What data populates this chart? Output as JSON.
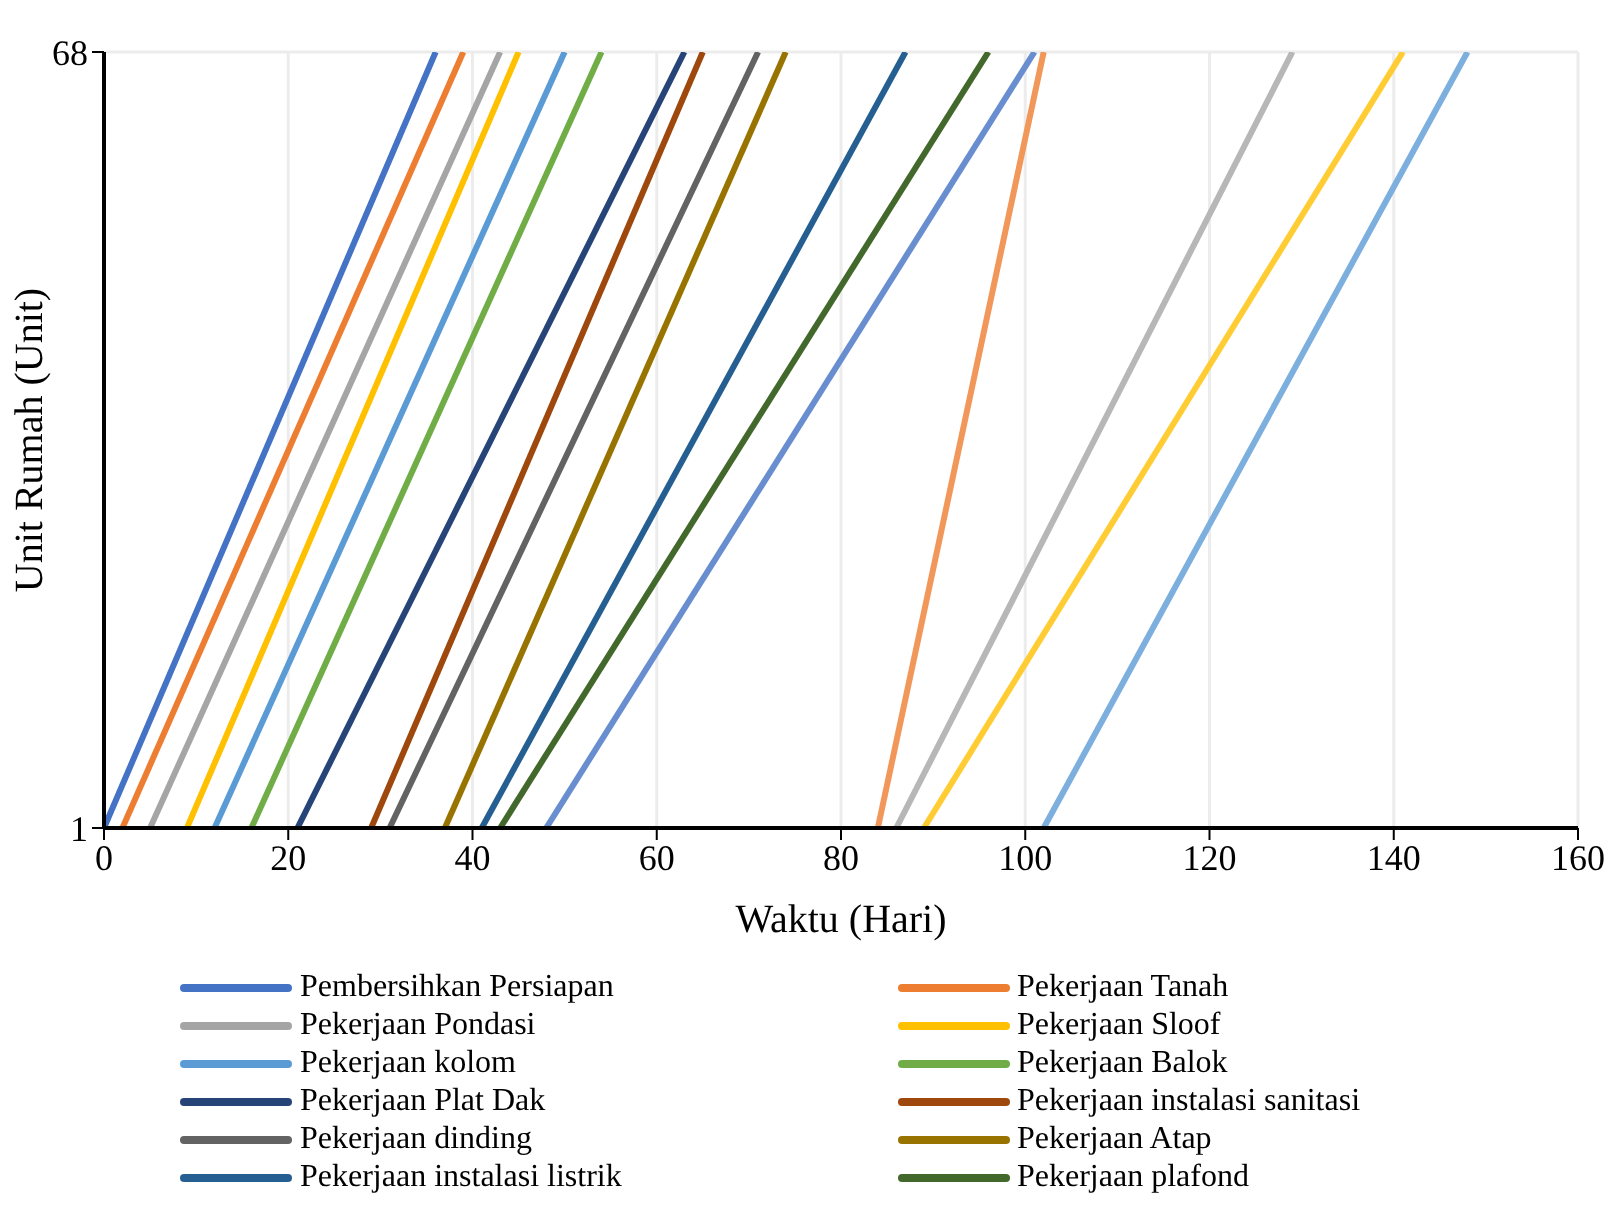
{
  "chart_data": {
    "type": "line",
    "xlabel": "Waktu (Hari)",
    "ylabel": "Unit Rumah (Unit)",
    "xlim": [
      0,
      160
    ],
    "xticks": [
      0,
      20,
      40,
      60,
      80,
      100,
      120,
      140,
      160
    ],
    "ylim": [
      1,
      68
    ],
    "yticks": [
      1,
      68
    ],
    "grid": true,
    "legend": "bottom",
    "marker": "none",
    "line_style": "solid",
    "series": [
      {
        "name": "Pembersihkan Persiapan",
        "color": "#4472c4",
        "x": [
          0,
          36
        ],
        "values": [
          1,
          68
        ]
      },
      {
        "name": "Pekerjaan Tanah",
        "color": "#ed7d31",
        "x": [
          2,
          39
        ],
        "values": [
          1,
          68
        ]
      },
      {
        "name": "Pekerjaan Pondasi",
        "color": "#a5a5a5",
        "x": [
          5,
          43
        ],
        "values": [
          1,
          68
        ]
      },
      {
        "name": "Pekerjaan Sloof",
        "color": "#ffc000",
        "x": [
          9,
          45
        ],
        "values": [
          1,
          68
        ]
      },
      {
        "name": "Pekerjaan kolom",
        "color": "#5b9bd5",
        "x": [
          12,
          50
        ],
        "values": [
          1,
          68
        ]
      },
      {
        "name": "Pekerjaan Balok",
        "color": "#70ad47",
        "x": [
          16,
          54
        ],
        "values": [
          1,
          68
        ]
      },
      {
        "name": "Pekerjaan Plat Dak",
        "color": "#264478",
        "x": [
          21,
          63
        ],
        "values": [
          1,
          68
        ]
      },
      {
        "name": "Pekerjaan instalasi sanitasi",
        "color": "#9e480e",
        "x": [
          29,
          65
        ],
        "values": [
          1,
          68
        ]
      },
      {
        "name": "Pekerjaan dinding",
        "color": "#636363",
        "x": [
          31,
          71
        ],
        "values": [
          1,
          68
        ]
      },
      {
        "name": "Pekerjaan Atap",
        "color": "#997300",
        "x": [
          37,
          74
        ],
        "values": [
          1,
          68
        ]
      },
      {
        "name": "Pekerjaan instalasi listrik",
        "color": "#255e91",
        "x": [
          41,
          87
        ],
        "values": [
          1,
          68
        ]
      },
      {
        "name": "Pekerjaan plafond",
        "color": "#43682b",
        "x": [
          43,
          96
        ],
        "values": [
          1,
          68
        ]
      },
      {
        "color": "#698ed0",
        "x": [
          48,
          101
        ],
        "values": [
          1,
          68
        ]
      },
      {
        "color": "#f1975a",
        "x": [
          84,
          102
        ],
        "values": [
          1,
          68
        ]
      },
      {
        "color": "#b7b7b7",
        "x": [
          86,
          129
        ],
        "values": [
          1,
          68
        ]
      },
      {
        "color": "#ffcd33",
        "x": [
          89,
          141
        ],
        "values": [
          1,
          68
        ]
      },
      {
        "color": "#7cafdd",
        "x": [
          102,
          148
        ],
        "values": [
          1,
          68
        ]
      }
    ]
  }
}
